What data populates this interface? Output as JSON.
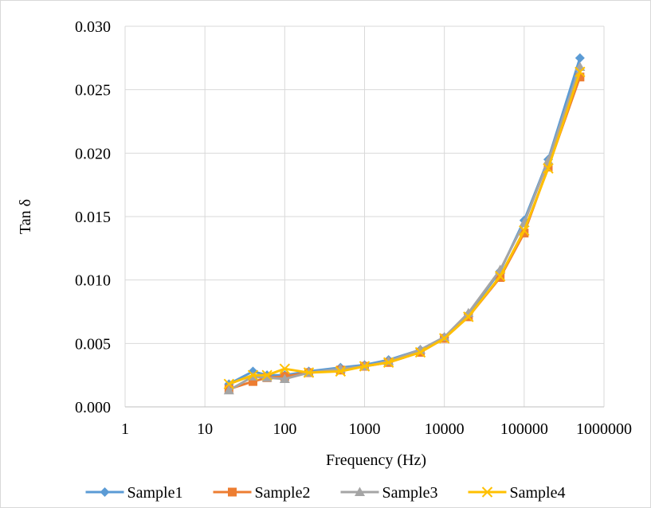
{
  "chart_data": {
    "type": "line",
    "xlabel": "Frequency (Hz)",
    "ylabel": "Tan δ",
    "x_scale": "log",
    "xlim": [
      1,
      1000000
    ],
    "ylim": [
      0,
      0.03
    ],
    "x_ticks": [
      1,
      10,
      100,
      1000,
      10000,
      100000,
      1000000
    ],
    "x_tick_labels": [
      "1",
      "10",
      "100",
      "1000",
      "10000",
      "100000",
      "1000000"
    ],
    "y_ticks": [
      0,
      0.005,
      0.01,
      0.015,
      0.02,
      0.025,
      0.03
    ],
    "y_tick_labels": [
      "0.000",
      "0.005",
      "0.010",
      "0.015",
      "0.020",
      "0.025",
      "0.030"
    ],
    "grid": true,
    "legend_position": "bottom",
    "x": [
      20,
      40,
      60,
      100,
      200,
      500,
      1000,
      2000,
      5000,
      10000,
      20000,
      50000,
      100000,
      200000,
      500000
    ],
    "series": [
      {
        "name": "Sample1",
        "color": "#5B9BD5",
        "marker": "diamond",
        "values": [
          0.0018,
          0.0028,
          0.0025,
          0.0025,
          0.0028,
          0.0031,
          0.0033,
          0.0037,
          0.0045,
          0.0055,
          0.0073,
          0.0107,
          0.0147,
          0.0195,
          0.0275
        ]
      },
      {
        "name": "Sample2",
        "color": "#ED7D31",
        "marker": "square",
        "values": [
          0.0014,
          0.002,
          0.0023,
          0.0024,
          0.0027,
          0.0029,
          0.0032,
          0.0035,
          0.0043,
          0.0054,
          0.0071,
          0.0102,
          0.0137,
          0.0189,
          0.026
        ]
      },
      {
        "name": "Sample3",
        "color": "#A5A5A5",
        "marker": "triangle",
        "values": [
          0.0013,
          0.0024,
          0.0023,
          0.0022,
          0.0027,
          0.003,
          0.0032,
          0.0036,
          0.0045,
          0.0055,
          0.0074,
          0.0108,
          0.0145,
          0.0194,
          0.0268
        ]
      },
      {
        "name": "Sample4",
        "color": "#FFC000",
        "marker": "x",
        "values": [
          0.0018,
          0.0025,
          0.0025,
          0.003,
          0.0027,
          0.0028,
          0.0032,
          0.0035,
          0.0043,
          0.0054,
          0.0071,
          0.0103,
          0.0139,
          0.0188,
          0.0264
        ]
      }
    ]
  }
}
